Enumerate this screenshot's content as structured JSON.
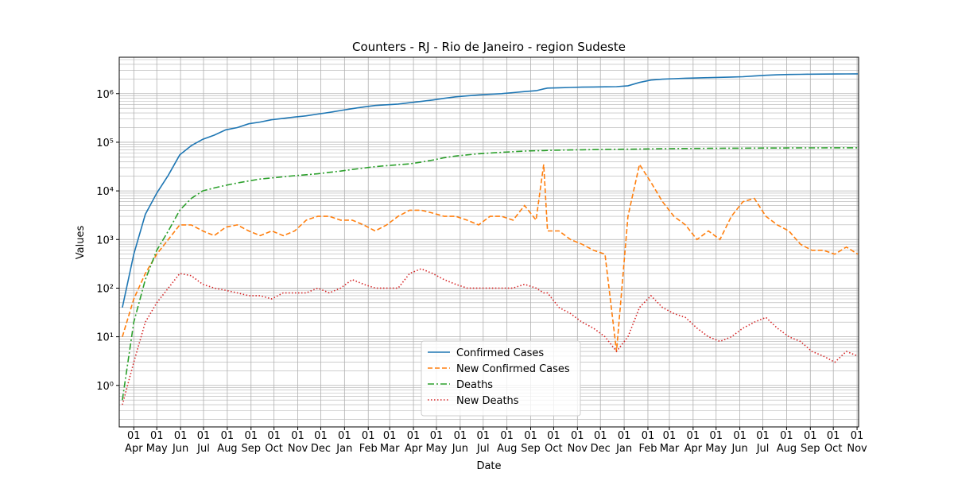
{
  "chart_data": {
    "type": "line",
    "title": "Counters - RJ - Rio de Janeiro - region Sudeste",
    "x_label": "Date",
    "y_label": "Values",
    "yscale": "log",
    "grid": true,
    "legend": "lower center",
    "x": [
      -15,
      0,
      15,
      30,
      45,
      60,
      75,
      90,
      105,
      120,
      135,
      150,
      165,
      180,
      195,
      210,
      225,
      240,
      255,
      270,
      285,
      300,
      315,
      330,
      345,
      360,
      375,
      390,
      405,
      420,
      435,
      450,
      465,
      480,
      495,
      510,
      525,
      535,
      540,
      555,
      570,
      585,
      600,
      615,
      630,
      645,
      660,
      675,
      690,
      705,
      720,
      735,
      750,
      765,
      780,
      795,
      810,
      825,
      840,
      855,
      870,
      885,
      900,
      915,
      930,
      945
    ],
    "series": [
      {
        "name": "Confirmed Cases",
        "color": "#1f77b4",
        "linestyle": "solid",
        "values": [
          40,
          500,
          3300,
          9000,
          21000,
          55000,
          85000,
          115000,
          140000,
          180000,
          200000,
          240000,
          260000,
          290000,
          310000,
          330000,
          350000,
          380000,
          410000,
          450000,
          490000,
          530000,
          570000,
          590000,
          610000,
          650000,
          690000,
          740000,
          800000,
          860000,
          900000,
          940000,
          970000,
          1000000,
          1050000,
          1100000,
          1150000,
          1250000,
          1300000,
          1320000,
          1340000,
          1360000,
          1370000,
          1380000,
          1390000,
          1450000,
          1700000,
          1900000,
          1980000,
          2030000,
          2070000,
          2100000,
          2130000,
          2160000,
          2190000,
          2230000,
          2300000,
          2380000,
          2440000,
          2470000,
          2490000,
          2510000,
          2520000,
          2530000,
          2540000,
          2550000
        ]
      },
      {
        "name": "New Confirmed Cases",
        "color": "#ff7f0e",
        "linestyle": "dashed",
        "values": [
          10,
          60,
          200,
          500,
          1000,
          2000,
          2000,
          1500,
          1200,
          1800,
          2000,
          1500,
          1200,
          1500,
          1200,
          1500,
          2500,
          3000,
          3000,
          2500,
          2500,
          2000,
          1500,
          2000,
          3000,
          4000,
          4000,
          3500,
          3000,
          3000,
          2500,
          2000,
          3000,
          3000,
          2500,
          5000,
          2500,
          35000,
          1500,
          1500,
          1000,
          800,
          600,
          500,
          5,
          3000,
          35000,
          15000,
          6000,
          3000,
          2000,
          1000,
          1500,
          1000,
          3000,
          6000,
          7000,
          3000,
          2000,
          1500,
          800,
          600,
          600,
          500,
          700,
          500
        ]
      },
      {
        "name": "Deaths",
        "color": "#2ca02c",
        "linestyle": "dashdot",
        "values": [
          0.5,
          20,
          150,
          600,
          1500,
          4000,
          7000,
          10000,
          11500,
          13000,
          14500,
          16000,
          17500,
          18500,
          19500,
          20500,
          21500,
          22500,
          24000,
          25500,
          27500,
          29500,
          31500,
          33000,
          34500,
          36000,
          39000,
          43000,
          48000,
          52000,
          55000,
          58000,
          60000,
          62000,
          64000,
          66000,
          67000,
          67500,
          68000,
          69000,
          69500,
          70000,
          70500,
          71000,
          71500,
          72000,
          72500,
          73000,
          73500,
          74000,
          74300,
          74600,
          75000,
          75200,
          75400,
          75600,
          75800,
          76000,
          76200,
          76400,
          76500,
          76600,
          76700,
          76800,
          76900,
          77000
        ]
      },
      {
        "name": "New Deaths",
        "color": "#d62728",
        "linestyle": "dotted",
        "values": [
          0.4,
          3,
          20,
          50,
          100,
          200,
          180,
          120,
          100,
          90,
          80,
          70,
          70,
          60,
          80,
          80,
          80,
          100,
          80,
          100,
          150,
          120,
          100,
          100,
          100,
          200,
          250,
          200,
          150,
          120,
          100,
          100,
          100,
          100,
          100,
          120,
          100,
          80,
          80,
          40,
          30,
          20,
          15,
          10,
          5,
          10,
          40,
          70,
          40,
          30,
          25,
          15,
          10,
          8,
          10,
          15,
          20,
          25,
          15,
          10,
          8,
          5,
          4,
          3,
          5,
          4
        ]
      }
    ],
    "xlim": [
      -19,
      946
    ],
    "xticks": [
      {
        "value": 0,
        "label": "01\nApr"
      },
      {
        "value": 30,
        "label": "01\nMay"
      },
      {
        "value": 61,
        "label": "01\nJun"
      },
      {
        "value": 91,
        "label": "01\nJul"
      },
      {
        "value": 122,
        "label": "01\nAug"
      },
      {
        "value": 153,
        "label": "01\nSep"
      },
      {
        "value": 183,
        "label": "01\nOct"
      },
      {
        "value": 214,
        "label": "01\nNov"
      },
      {
        "value": 244,
        "label": "01\nDec"
      },
      {
        "value": 275,
        "label": "01\nJan"
      },
      {
        "value": 306,
        "label": "01\nFeb"
      },
      {
        "value": 334,
        "label": "01\nMar"
      },
      {
        "value": 365,
        "label": "01\nApr"
      },
      {
        "value": 395,
        "label": "01\nMay"
      },
      {
        "value": 426,
        "label": "01\nJun"
      },
      {
        "value": 456,
        "label": "01\nJul"
      },
      {
        "value": 487,
        "label": "01\nAug"
      },
      {
        "value": 518,
        "label": "01\nSep"
      },
      {
        "value": 548,
        "label": "01\nOct"
      },
      {
        "value": 579,
        "label": "01\nNov"
      },
      {
        "value": 609,
        "label": "01\nDec"
      },
      {
        "value": 640,
        "label": "01\nJan"
      },
      {
        "value": 671,
        "label": "01\nFeb"
      },
      {
        "value": 699,
        "label": "01\nMar"
      },
      {
        "value": 730,
        "label": "01\nApr"
      },
      {
        "value": 760,
        "label": "01\nMay"
      },
      {
        "value": 791,
        "label": "01\nJun"
      },
      {
        "value": 821,
        "label": "01\nJul"
      },
      {
        "value": 852,
        "label": "01\nAug"
      },
      {
        "value": 883,
        "label": "01\nSep"
      },
      {
        "value": 913,
        "label": "01\nOct"
      },
      {
        "value": 944,
        "label": "01\nNov"
      }
    ],
    "ylim": [
      0.14,
      5600000
    ],
    "yticks": [
      {
        "value": 1,
        "label": "10⁰"
      },
      {
        "value": 10,
        "label": "10¹"
      },
      {
        "value": 100,
        "label": "10²"
      },
      {
        "value": 1000,
        "label": "10³"
      },
      {
        "value": 10000,
        "label": "10⁴"
      },
      {
        "value": 100000,
        "label": "10⁵"
      },
      {
        "value": 1000000,
        "label": "10⁶"
      }
    ]
  }
}
